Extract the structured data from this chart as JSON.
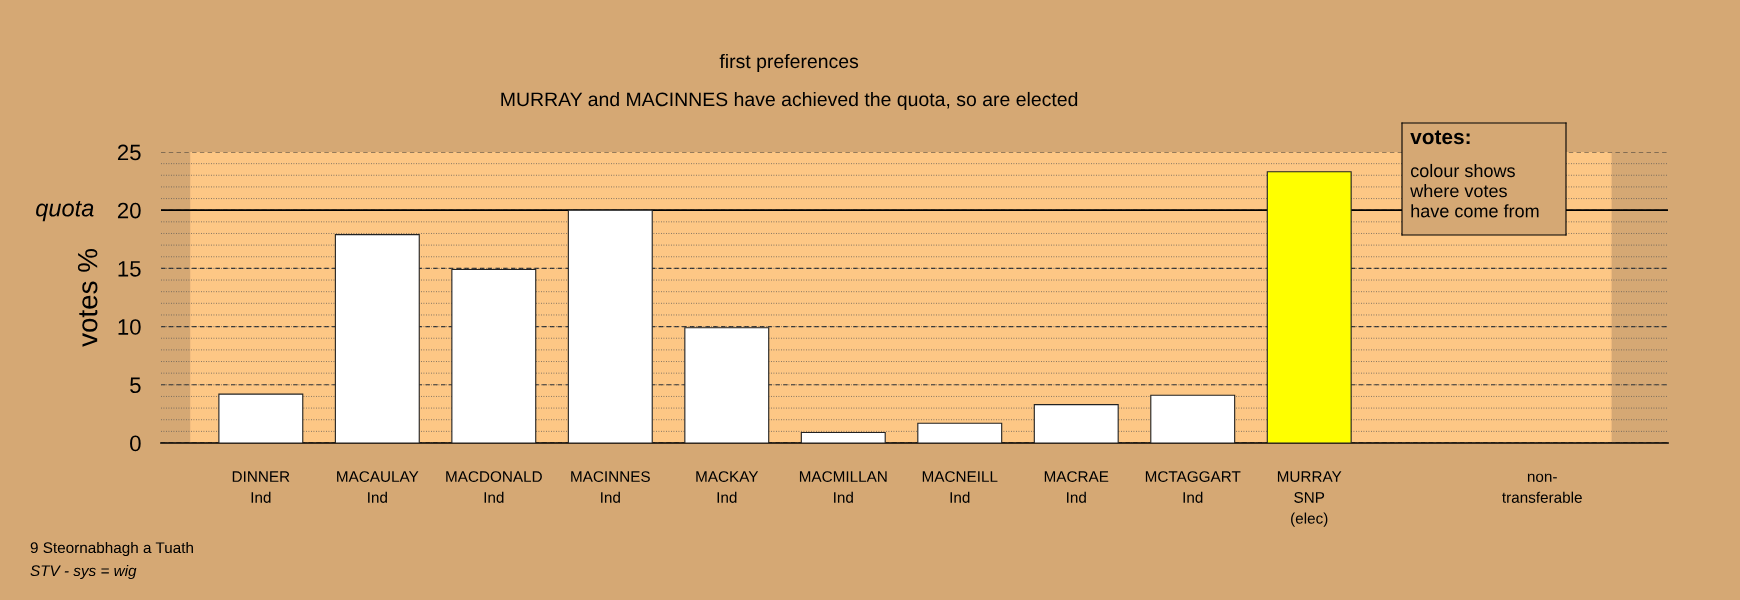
{
  "chart_data": {
    "type": "bar",
    "title": "first preferences",
    "subtitle": "MURRAY and MACINNES have achieved the quota, so are elected",
    "ylabel": "votes %",
    "categories": [
      "DINNER\nInd",
      "MACAULAY\nInd",
      "MACDONALD\nInd",
      "MACINNES\nInd",
      "MACKAY\nInd",
      "MACMILLAN\nInd",
      "MACNEILL\nInd",
      "MACRAE\nInd",
      "MCTAGGART\nInd",
      "MURRAY\nSNP\n(elec)",
      null,
      "non-\ntransferable"
    ],
    "values": [
      4.2,
      17.9,
      14.9,
      20.0,
      9.9,
      0.9,
      1.7,
      3.3,
      4.1,
      23.3,
      null,
      null
    ],
    "colors": [
      "#ffffff",
      "#ffffff",
      "#ffffff",
      "#ffffff",
      "#ffffff",
      "#ffffff",
      "#ffffff",
      "#ffffff",
      "#ffffff",
      "#ffff00",
      "#ffffff",
      "#ffffff"
    ],
    "ylim": [
      0,
      25
    ],
    "yticks": [
      0,
      5,
      10,
      15,
      20,
      25
    ],
    "grid": "y",
    "ref_lines": [
      {
        "axis": "y",
        "value": 20,
        "label": "quota",
        "color": "#000000",
        "line_style": "solid"
      }
    ],
    "annotations": [
      "votes:",
      "colour shows\nwhere votes\nhave come from",
      "9 Steornabhagh a Tuath",
      "STV - sys = wig"
    ]
  }
}
